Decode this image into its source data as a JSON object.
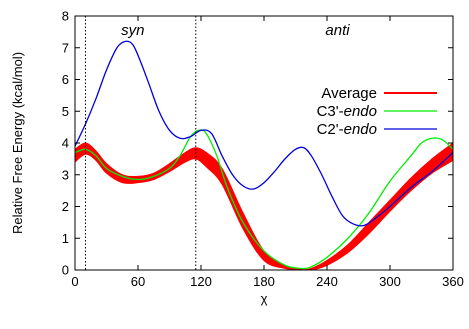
{
  "chart_data": {
    "type": "line",
    "xlabel": "χ",
    "ylabel": "Relative Free Energy (kcal/mol)",
    "xlim": [
      0,
      360
    ],
    "ylim": [
      0,
      8
    ],
    "xticks": [
      0,
      60,
      120,
      180,
      240,
      300,
      360
    ],
    "yticks": [
      0,
      1,
      2,
      3,
      4,
      5,
      6,
      7,
      8
    ],
    "grid": false,
    "legend_position": "right",
    "vlines": [
      10,
      115
    ],
    "regions": [
      {
        "label": "syn",
        "x": 55
      },
      {
        "label": "anti",
        "x": 250
      }
    ],
    "series": [
      {
        "name": "Average",
        "legend_prefix": "Average",
        "legend_italic": "",
        "color": "#ff0000",
        "band": true,
        "x": [
          0,
          10,
          20,
          30,
          45,
          60,
          75,
          90,
          105,
          115,
          125,
          140,
          160,
          180,
          200,
          215,
          225,
          240,
          260,
          280,
          300,
          320,
          340,
          360
        ],
        "upper": [
          3.8,
          4.0,
          3.75,
          3.35,
          3.0,
          2.95,
          3.05,
          3.35,
          3.7,
          3.85,
          3.7,
          3.2,
          1.8,
          0.6,
          0.15,
          0.02,
          0.05,
          0.3,
          0.8,
          1.5,
          2.2,
          2.9,
          3.5,
          4.0
        ],
        "lower": [
          3.4,
          3.65,
          3.45,
          3.05,
          2.75,
          2.75,
          2.85,
          3.1,
          3.4,
          3.5,
          3.25,
          2.7,
          1.3,
          0.3,
          0.05,
          0.0,
          0.0,
          0.15,
          0.55,
          1.15,
          1.85,
          2.5,
          3.05,
          3.45
        ]
      },
      {
        "name": "C3'-endo",
        "legend_prefix": "C3'-",
        "legend_italic": "endo",
        "color": "#00ee00",
        "band": false,
        "x": [
          0,
          10,
          20,
          30,
          45,
          60,
          75,
          90,
          100,
          110,
          118,
          125,
          135,
          145,
          160,
          180,
          200,
          215,
          225,
          240,
          260,
          280,
          300,
          320,
          330,
          340,
          350,
          360
        ],
        "y": [
          3.7,
          3.8,
          3.6,
          3.2,
          2.95,
          2.85,
          2.95,
          3.2,
          3.6,
          4.2,
          4.4,
          4.3,
          3.6,
          2.6,
          1.5,
          0.6,
          0.15,
          0.05,
          0.1,
          0.4,
          1.0,
          1.8,
          2.8,
          3.6,
          4.0,
          4.15,
          4.1,
          3.8
        ]
      },
      {
        "name": "C2'-endo",
        "legend_prefix": "C2'-",
        "legend_italic": "endo",
        "color": "#0000dd",
        "band": false,
        "x": [
          0,
          10,
          20,
          30,
          40,
          48,
          55,
          62,
          70,
          80,
          90,
          100,
          110,
          120,
          130,
          140,
          150,
          160,
          170,
          180,
          190,
          200,
          210,
          218,
          225,
          235,
          245,
          255,
          265,
          275,
          285,
          300,
          320,
          340,
          360
        ],
        "y": [
          3.9,
          4.6,
          5.4,
          6.3,
          7.0,
          7.2,
          7.1,
          6.6,
          5.9,
          5.0,
          4.4,
          4.15,
          4.2,
          4.4,
          4.3,
          3.6,
          3.0,
          2.65,
          2.55,
          2.75,
          3.1,
          3.5,
          3.8,
          3.85,
          3.6,
          3.0,
          2.3,
          1.7,
          1.45,
          1.4,
          1.6,
          2.0,
          2.6,
          3.1,
          3.7
        ]
      }
    ]
  }
}
